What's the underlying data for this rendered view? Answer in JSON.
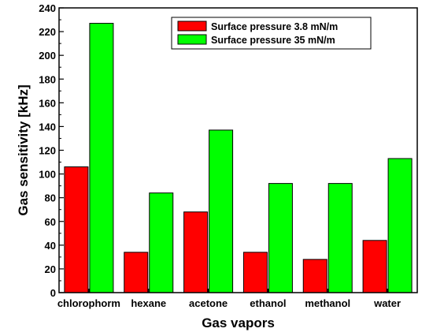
{
  "chart_data": {
    "type": "bar",
    "categories": [
      "chlorophorm",
      "hexane",
      "acetone",
      "ethanol",
      "methanol",
      "water"
    ],
    "series": [
      {
        "name": "Surface pressure 3.8 mN/m",
        "color": "#ff0000",
        "values": [
          106,
          34,
          68,
          34,
          28,
          44
        ]
      },
      {
        "name": "Surface pressure 35 mN/m",
        "color": "#00ff00",
        "values": [
          227,
          84,
          137,
          92,
          92,
          113
        ]
      }
    ],
    "xlabel": "Gas vapors",
    "ylabel": "Gas sensitivity [kHz]",
    "ylim": [
      0,
      240
    ],
    "yticks": [
      0,
      20,
      40,
      60,
      80,
      100,
      120,
      140,
      160,
      180,
      200,
      220,
      240
    ],
    "legend_position": "top-right",
    "grid": false
  }
}
